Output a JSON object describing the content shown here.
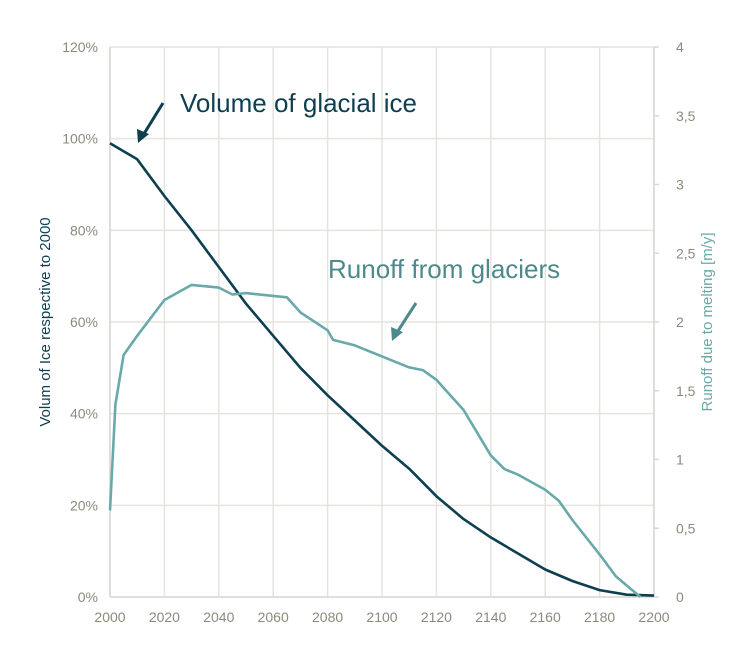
{
  "chart_data": {
    "type": "line",
    "x_range": [
      2000,
      2200
    ],
    "x_ticks": [
      "2000",
      "2020",
      "2040",
      "2060",
      "2080",
      "2100",
      "2120",
      "2140",
      "2160",
      "2180",
      "2200"
    ],
    "y_left": {
      "label": "Volum of Ice respective to 2000",
      "range": [
        0,
        120
      ],
      "ticks": [
        "0%",
        "20%",
        "40%",
        "60%",
        "80%",
        "100%",
        "120%"
      ]
    },
    "y_right": {
      "label": "Runoff due to melting [m/y]",
      "range": [
        0,
        4
      ],
      "ticks": [
        "0",
        "0,5",
        "1",
        "1,5",
        "2",
        "2,5",
        "3",
        "3,5",
        "4"
      ]
    },
    "grid": true,
    "series": [
      {
        "name": "Volume of glacial ice",
        "axis": "left",
        "color": "#0d3f50",
        "x": [
          2000,
          2010,
          2020,
          2030,
          2040,
          2050,
          2060,
          2070,
          2080,
          2090,
          2100,
          2110,
          2120,
          2130,
          2140,
          2150,
          2160,
          2170,
          2180,
          2190,
          2200
        ],
        "y": [
          99,
          95.5,
          87.5,
          80,
          72,
          64,
          57,
          50,
          44,
          38.5,
          33,
          28,
          22,
          17,
          13,
          9.5,
          6,
          3.5,
          1.5,
          0.5,
          0.3
        ]
      },
      {
        "name": "Runoff from glaciers",
        "axis": "right",
        "color": "#6aa9aa",
        "x": [
          2000,
          2002,
          2005,
          2010,
          2020,
          2030,
          2040,
          2045,
          2050,
          2060,
          2065,
          2070,
          2080,
          2082,
          2090,
          2100,
          2110,
          2115,
          2120,
          2130,
          2140,
          2145,
          2150,
          2160,
          2165,
          2170,
          2180,
          2186,
          2195
        ],
        "y": [
          0.63,
          1.4,
          1.76,
          1.9,
          2.16,
          2.27,
          2.25,
          2.2,
          2.21,
          2.19,
          2.18,
          2.07,
          1.94,
          1.87,
          1.83,
          1.75,
          1.67,
          1.65,
          1.58,
          1.36,
          1.03,
          0.93,
          0.89,
          0.78,
          0.7,
          0.56,
          0.31,
          0.15,
          0
        ]
      }
    ],
    "annotations": [
      "Volume of glacial ice",
      "Runoff from glaciers"
    ]
  }
}
